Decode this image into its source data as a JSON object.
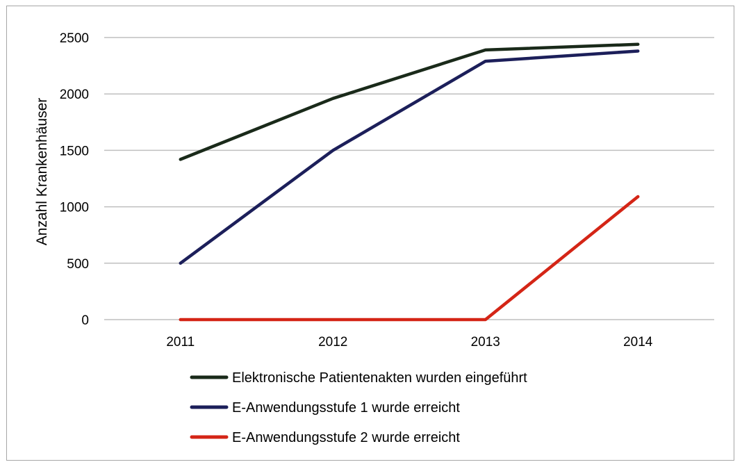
{
  "chart_data": {
    "type": "line",
    "title": "",
    "xlabel": "",
    "ylabel": "Anzahl Krankenhäuser",
    "categories": [
      "2011",
      "2012",
      "2013",
      "2014"
    ],
    "ylim": [
      0,
      2500
    ],
    "yticks": [
      0,
      500,
      1000,
      1500,
      2000,
      2500
    ],
    "grid": true,
    "legend_position": "bottom",
    "series": [
      {
        "name": "Elektronische Patientenakten wurden eingeführt",
        "color": "#1a2a1a",
        "values": [
          1420,
          1960,
          2390,
          2440
        ]
      },
      {
        "name": "E-Anwendungsstufe 1 wurde erreicht",
        "color": "#1c1f5a",
        "values": [
          500,
          1500,
          2290,
          2380
        ]
      },
      {
        "name": "E-Anwendungsstufe 2 wurde erreicht",
        "color": "#d42516",
        "values": [
          0,
          0,
          0,
          1090
        ]
      }
    ]
  }
}
